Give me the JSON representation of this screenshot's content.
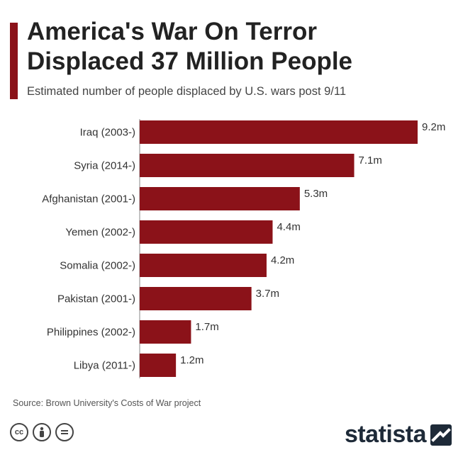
{
  "header": {
    "title_line1": "America's War On Terror",
    "title_line2": "Displaced 37 Million People",
    "subtitle": "Estimated number of people displaced by U.S. wars post 9/11"
  },
  "chart_data": {
    "type": "bar",
    "orientation": "horizontal",
    "categories": [
      "Iraq (2003-)",
      "Syria (2014-)",
      "Afghanistan (2001-)",
      "Yemen (2002-)",
      "Somalia (2002-)",
      "Pakistan (2001-)",
      "Philippines (2002-)",
      "Libya (2011-)"
    ],
    "values": [
      9.2,
      7.1,
      5.3,
      4.4,
      4.2,
      3.7,
      1.7,
      1.2
    ],
    "value_labels": [
      "9.2m",
      "7.1m",
      "5.3m",
      "4.4m",
      "4.2m",
      "3.7m",
      "1.7m",
      "1.2m"
    ],
    "title": "America's War On Terror Displaced 37 Million People",
    "subtitle": "Estimated number of people displaced by U.S. wars post 9/11",
    "xlim": [
      0,
      9.2
    ],
    "grid": false,
    "legend": "none",
    "bar_color": "#8b1219"
  },
  "footer": {
    "source": "Source: Brown University's Costs of War project",
    "brand": "statista",
    "license_icons": [
      "cc-icon",
      "attribution-icon",
      "no-derivatives-icon"
    ]
  },
  "colors": {
    "accent": "#8b1219",
    "text": "#222222",
    "brand": "#1e2a38"
  }
}
